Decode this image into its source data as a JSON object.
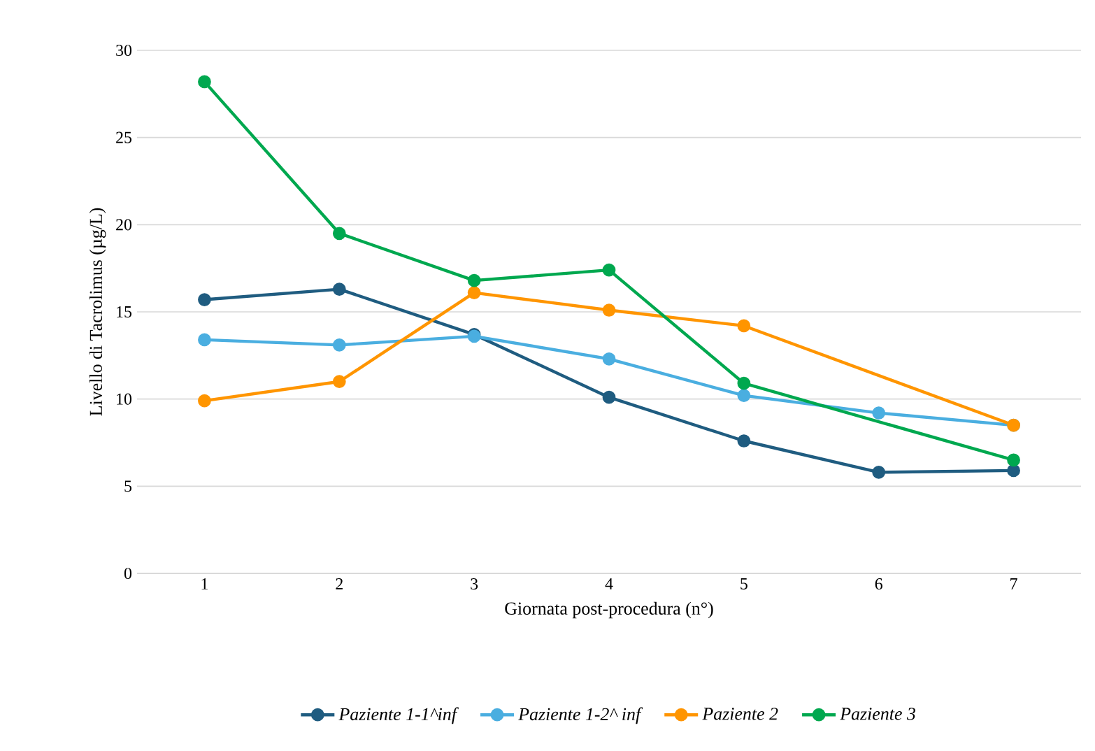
{
  "chart_data": {
    "type": "line",
    "xlabel": "Giornata post-procedura (n°)",
    "ylabel": "Livello di Tacrolimus (µg/L)",
    "categories": [
      "1",
      "2",
      "3",
      "4",
      "5",
      "6",
      "7"
    ],
    "series": [
      {
        "name": "Paziente 1-1^inf",
        "color": "#1f5c80",
        "values": [
          15.7,
          16.3,
          13.7,
          10.1,
          7.6,
          5.8,
          5.9
        ]
      },
      {
        "name": "Paziente 1-2^ inf",
        "color": "#4aaee0",
        "values": [
          13.4,
          13.1,
          13.6,
          12.3,
          10.2,
          9.2,
          8.5
        ]
      },
      {
        "name": "Paziente 2",
        "color": "#ff9500",
        "values": [
          9.9,
          11.0,
          16.1,
          15.1,
          14.2,
          null,
          8.5
        ]
      },
      {
        "name": "Paziente 3",
        "color": "#00a84f",
        "values": [
          28.2,
          19.5,
          16.8,
          17.4,
          10.9,
          null,
          6.5
        ]
      }
    ],
    "ylim": [
      0,
      30
    ],
    "yticks": [
      0,
      5,
      10,
      15,
      20,
      25,
      30
    ],
    "grid": "y",
    "legend": "bottom",
    "marker": "circle",
    "line_style": "solid"
  }
}
